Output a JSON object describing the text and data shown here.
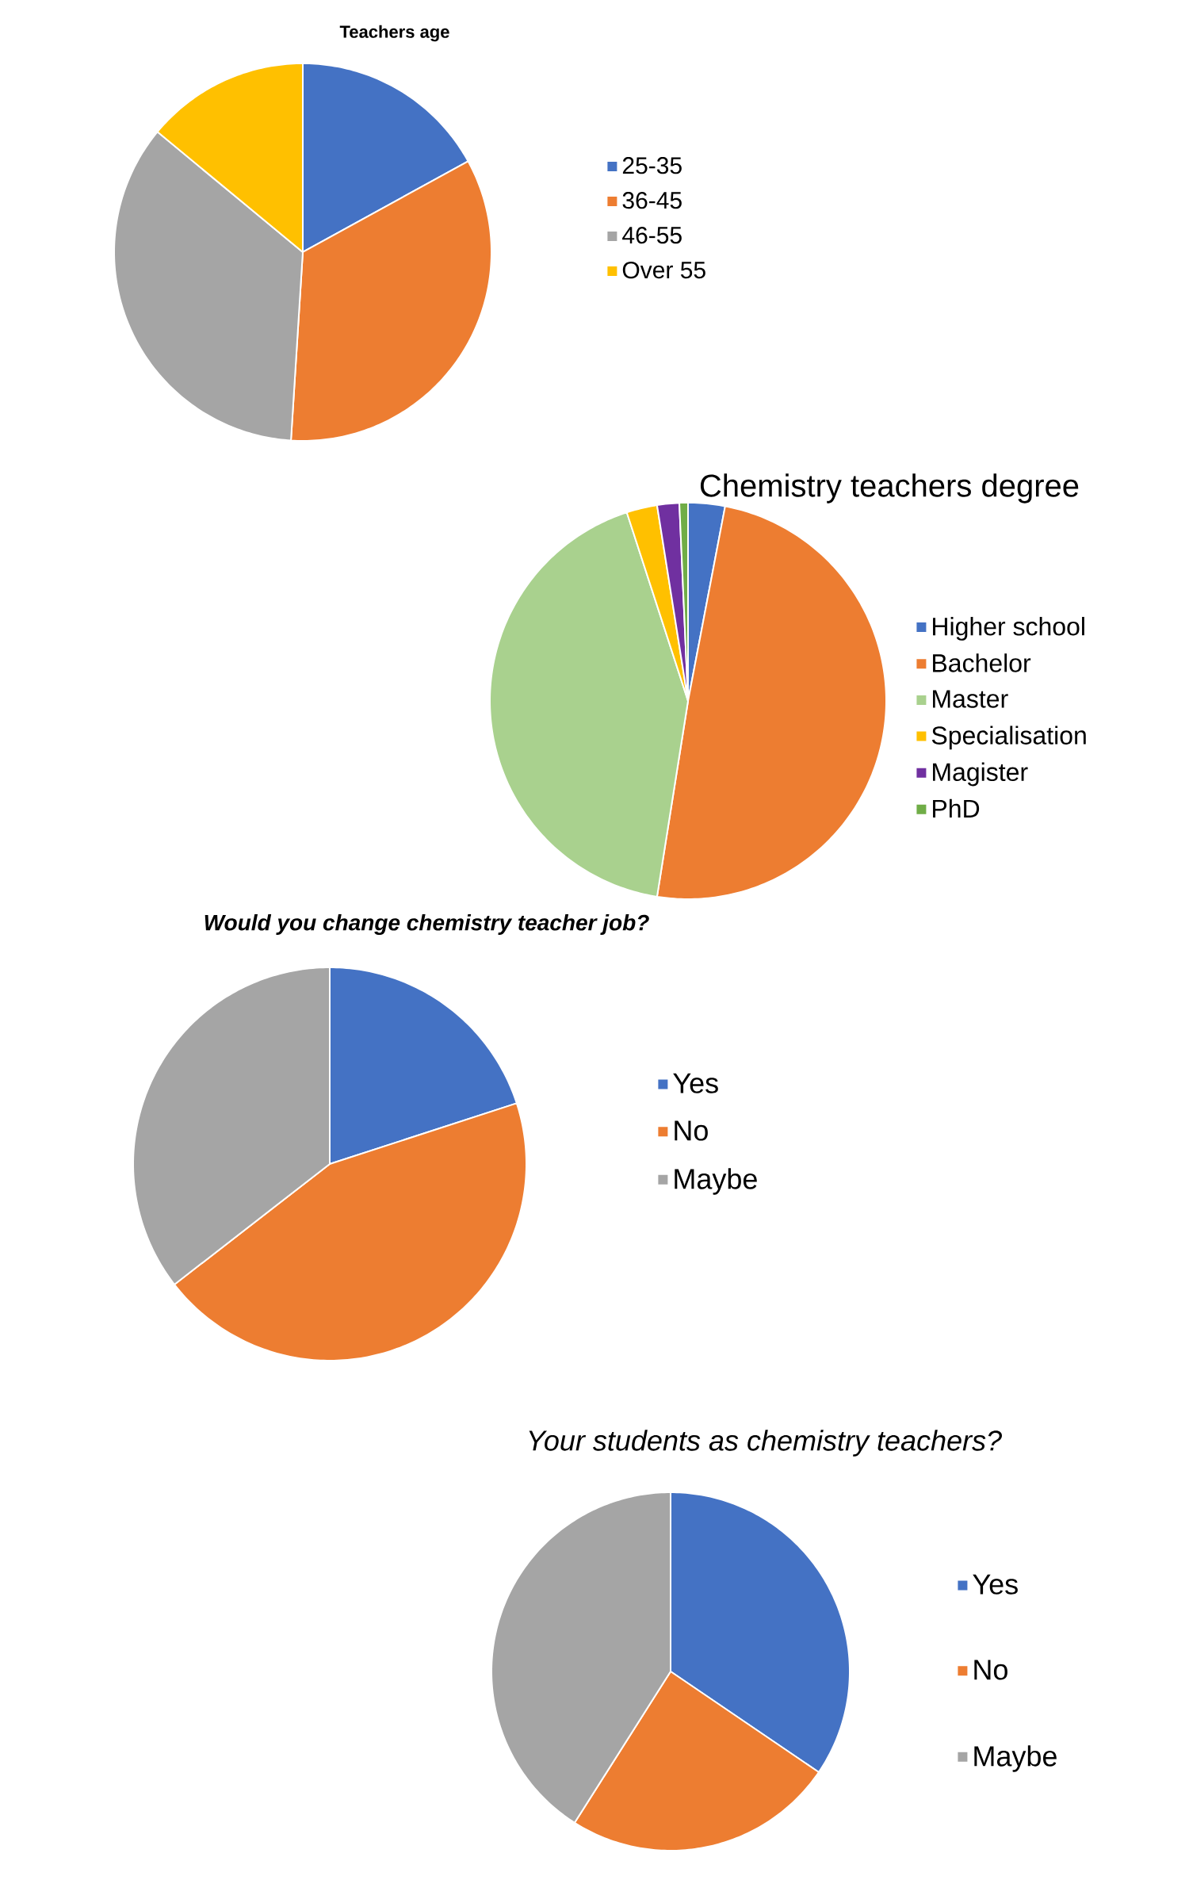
{
  "chart_data": [
    {
      "type": "pie",
      "title": "Teachers age",
      "categories": [
        "25-35",
        "36-45",
        "46-55",
        "Over 55"
      ],
      "values": [
        17,
        34,
        35,
        14
      ],
      "colors": [
        "#4472c4",
        "#ed7d31",
        "#a5a5a5",
        "#ffc000"
      ],
      "legend": "right"
    },
    {
      "type": "pie",
      "title": "Chemistry teachers degree",
      "categories": [
        "Higher school",
        "Bachelor",
        "Master",
        "Specialisation",
        "Magister",
        "PhD"
      ],
      "values": [
        3,
        49.5,
        42.5,
        2.5,
        1.8,
        0.7
      ],
      "colors": [
        "#4472c4",
        "#ed7d31",
        "#a9d18e",
        "#ffc000",
        "#7030a0",
        "#70ad47"
      ],
      "legend": "right"
    },
    {
      "type": "pie",
      "title": "Would you change chemistry teacher job?",
      "categories": [
        "Yes",
        "No",
        "Maybe"
      ],
      "values": [
        20,
        44.5,
        35.5
      ],
      "colors": [
        "#4472c4",
        "#ed7d31",
        "#a5a5a5"
      ],
      "legend": "right"
    },
    {
      "type": "pie",
      "title": "Your students as chemistry teachers?",
      "categories": [
        "Yes",
        "No",
        "Maybe"
      ],
      "values": [
        34.5,
        24.5,
        41
      ],
      "colors": [
        "#4472c4",
        "#ed7d31",
        "#a5a5a5"
      ],
      "legend": "right"
    }
  ]
}
